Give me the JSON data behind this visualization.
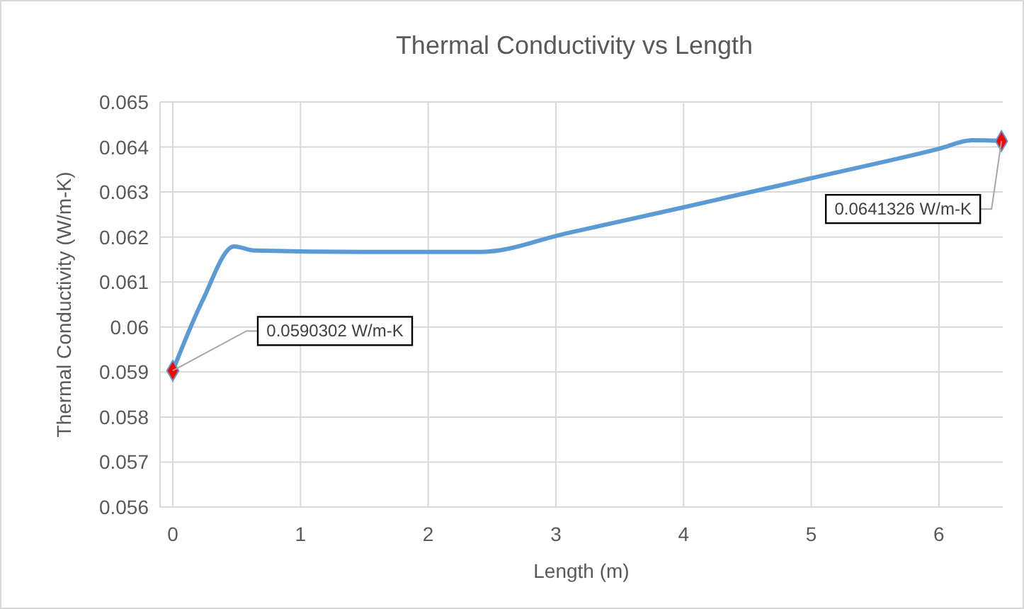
{
  "chart_data": {
    "type": "line",
    "title": "Thermal Conductivity vs Length",
    "xlabel": "Length (m)",
    "ylabel": "Thermal Conductivity (W/m-K)",
    "xlim": [
      -0.1,
      6.5
    ],
    "xticks": [
      0,
      1,
      2,
      3,
      4,
      5,
      6
    ],
    "ylim": [
      0.056,
      0.065
    ],
    "yticks": [
      0.056,
      0.057,
      0.058,
      0.059,
      0.06,
      0.061,
      0.062,
      0.063,
      0.064,
      0.065
    ],
    "grid": true,
    "series": [
      {
        "color": "#5b9bd5",
        "marker": "none",
        "x": [
          0,
          0.23,
          0.48,
          0.64,
          1.5,
          2.42,
          3.08,
          3.97,
          4.99,
          6.0,
          6.26,
          6.49
        ],
        "values": [
          0.0590302,
          0.06057,
          0.06179,
          0.0617,
          0.06167,
          0.06167,
          0.06208,
          0.06264,
          0.0633,
          0.06396,
          0.06415,
          0.0641326
        ]
      },
      {
        "type": "scatter",
        "color": "#ff0000",
        "marker": "diamond",
        "x": [
          0,
          6.49
        ],
        "values": [
          0.0590302,
          0.0641326
        ],
        "value_labels": [
          "0.0590302 W/m-K",
          "0.0641326 W/m-K"
        ]
      }
    ]
  }
}
